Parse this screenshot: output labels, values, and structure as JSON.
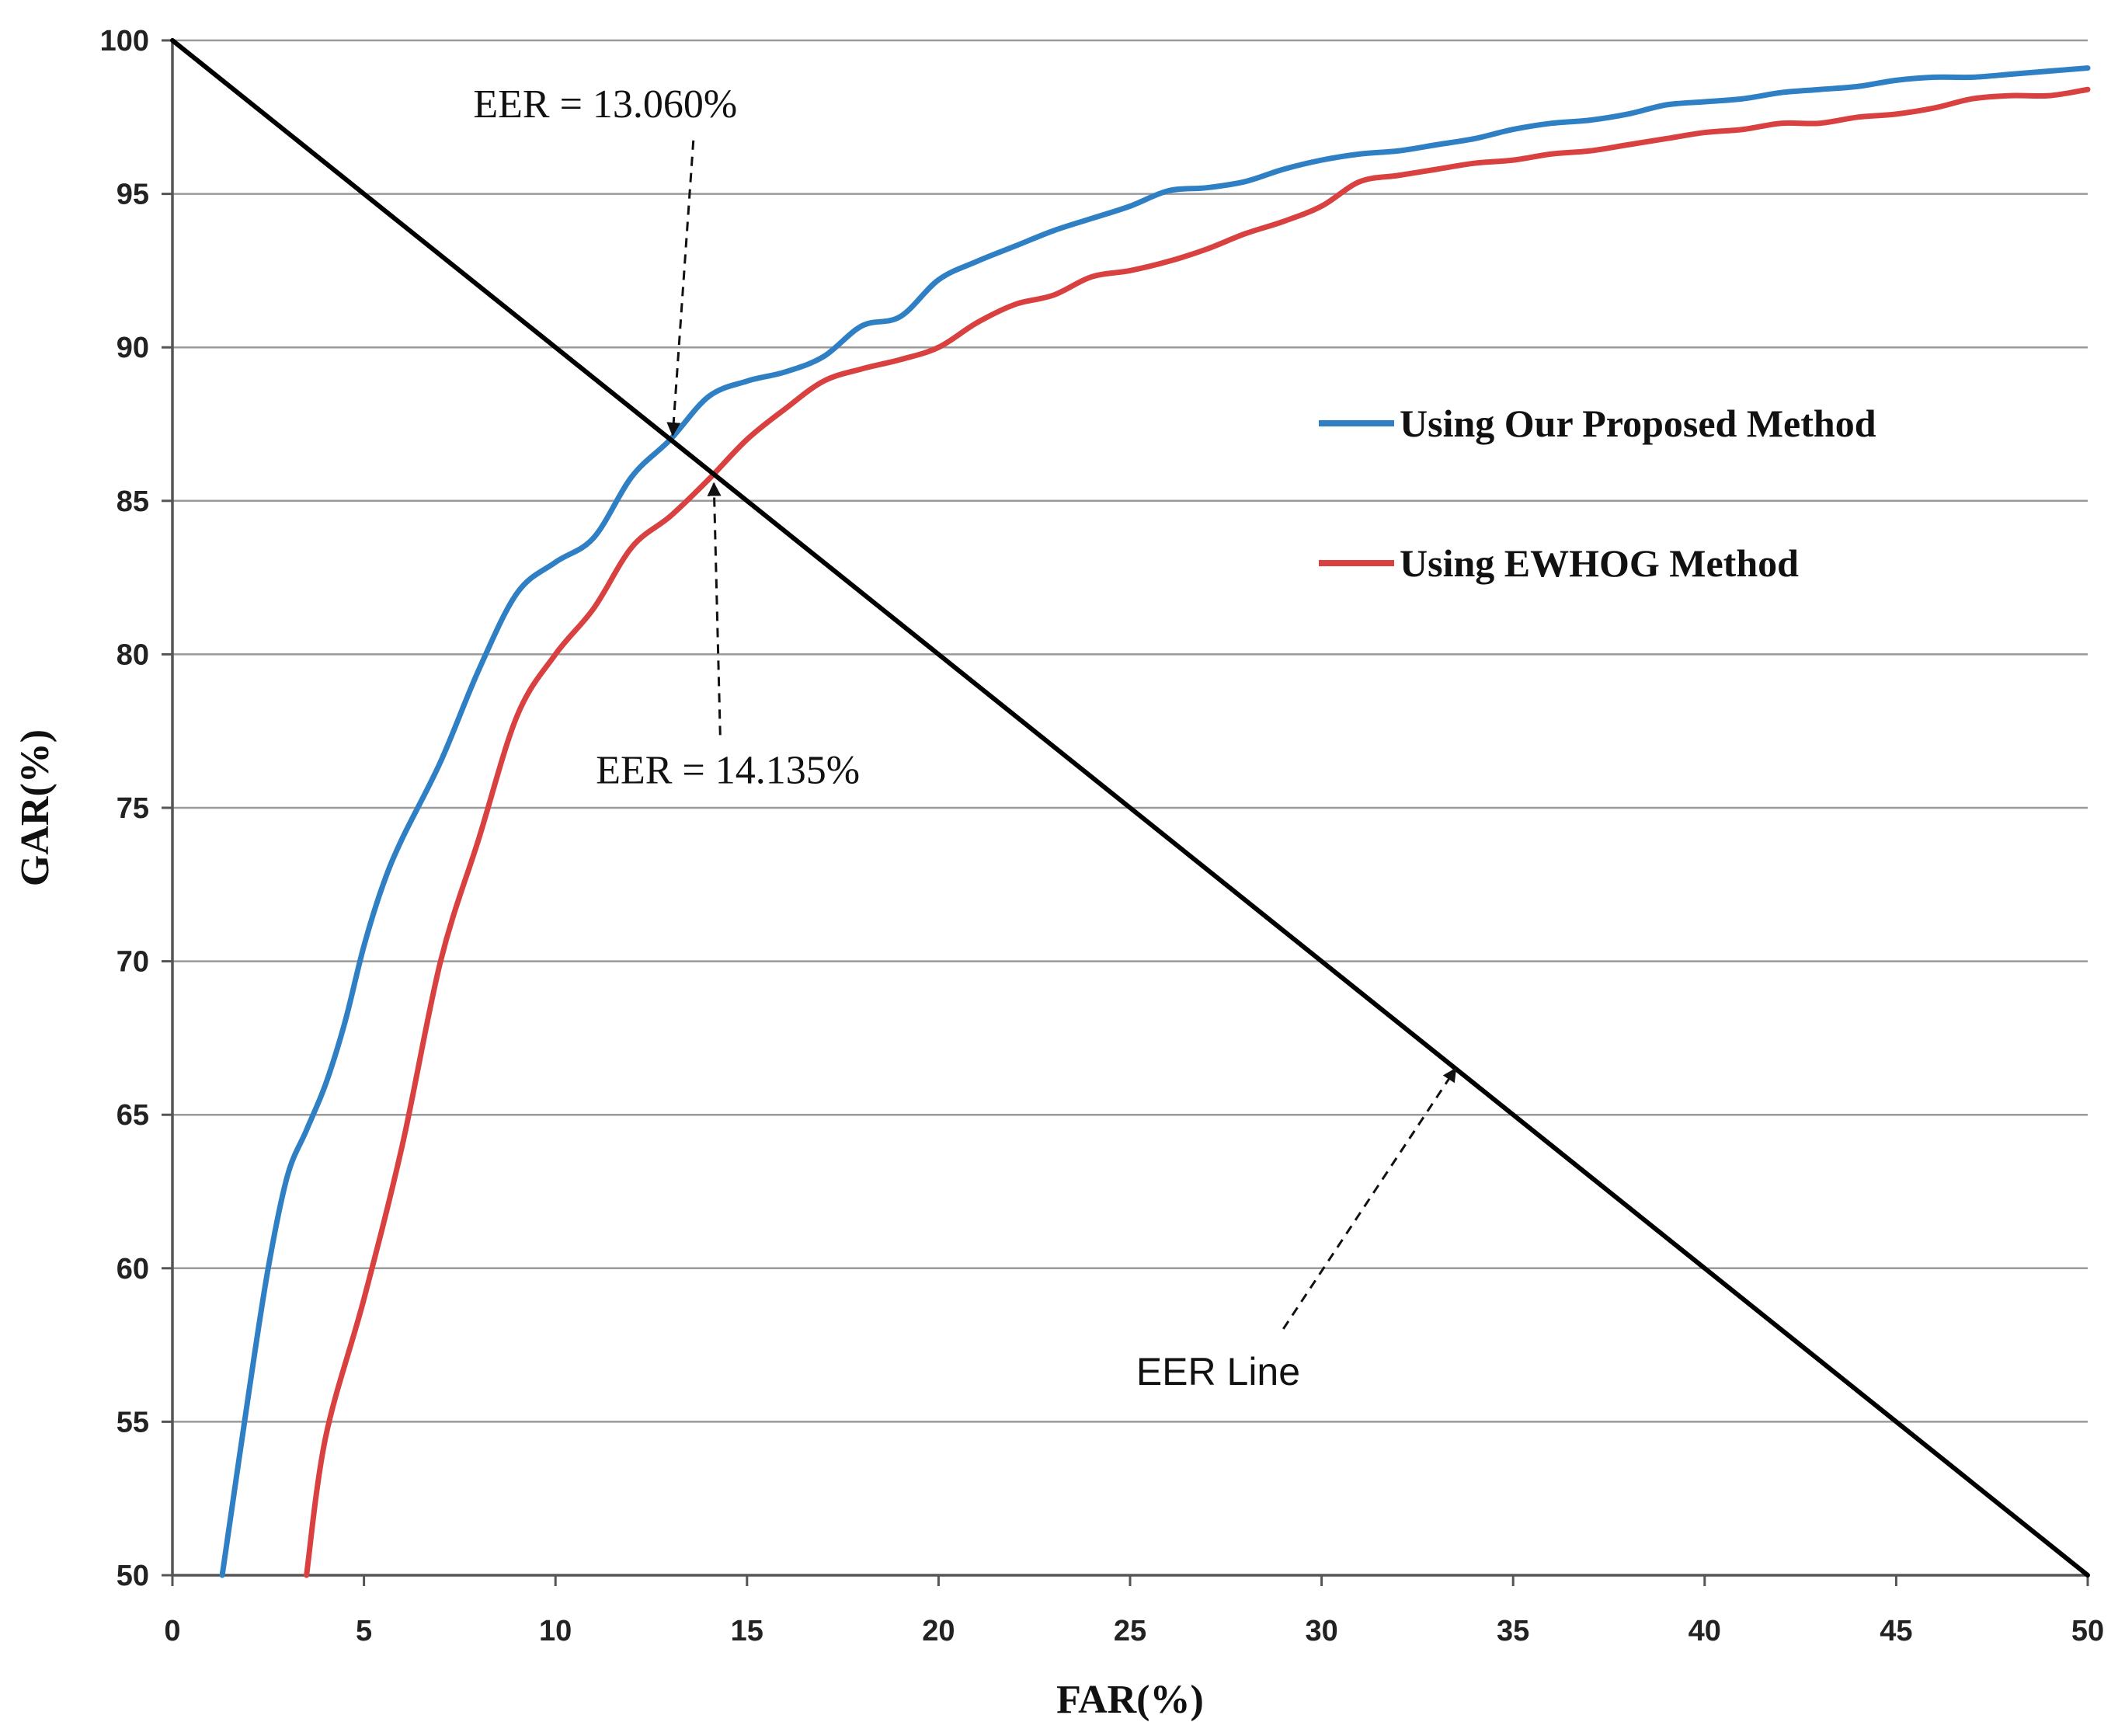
{
  "chart_data": {
    "type": "line",
    "title": "",
    "xlabel": "FAR(%)",
    "ylabel": "GAR(%)",
    "xlim": [
      0,
      50
    ],
    "ylim": [
      50,
      100
    ],
    "x_ticks": [
      "0",
      "5",
      "10",
      "15",
      "20",
      "25",
      "30",
      "35",
      "40",
      "45",
      "50"
    ],
    "y_ticks": [
      "50",
      "55",
      "60",
      "65",
      "70",
      "75",
      "80",
      "85",
      "90",
      "95",
      "100"
    ],
    "grid": "horizontal",
    "legend_position": "right",
    "series": [
      {
        "name": "Using Our Proposed Method",
        "color": "#2e7fc4",
        "points": [
          [
            1.3,
            50
          ],
          [
            2,
            56
          ],
          [
            2.5,
            60
          ],
          [
            3,
            63
          ],
          [
            3.5,
            64.5
          ],
          [
            4,
            66
          ],
          [
            4.5,
            68
          ],
          [
            5,
            70.5
          ],
          [
            5.5,
            72.5
          ],
          [
            6,
            74
          ],
          [
            7,
            76.5
          ],
          [
            8,
            79.5
          ],
          [
            9,
            82
          ],
          [
            10,
            83
          ],
          [
            11,
            83.8
          ],
          [
            12,
            85.8
          ],
          [
            13,
            87
          ],
          [
            14,
            88.4
          ],
          [
            15,
            88.9
          ],
          [
            16,
            89.2
          ],
          [
            17,
            89.7
          ],
          [
            18,
            90.7
          ],
          [
            19,
            91
          ],
          [
            20,
            92.2
          ],
          [
            21,
            92.8
          ],
          [
            22,
            93.3
          ],
          [
            23,
            93.8
          ],
          [
            24,
            94.2
          ],
          [
            25,
            94.6
          ],
          [
            26,
            95.1
          ],
          [
            27,
            95.2
          ],
          [
            28,
            95.4
          ],
          [
            29,
            95.8
          ],
          [
            30,
            96.1
          ],
          [
            31,
            96.3
          ],
          [
            32,
            96.4
          ],
          [
            33,
            96.6
          ],
          [
            34,
            96.8
          ],
          [
            35,
            97.1
          ],
          [
            36,
            97.3
          ],
          [
            37,
            97.4
          ],
          [
            38,
            97.6
          ],
          [
            39,
            97.9
          ],
          [
            40,
            98
          ],
          [
            41,
            98.1
          ],
          [
            42,
            98.3
          ],
          [
            43,
            98.4
          ],
          [
            44,
            98.5
          ],
          [
            45,
            98.7
          ],
          [
            46,
            98.8
          ],
          [
            47,
            98.8
          ],
          [
            48,
            98.9
          ],
          [
            49,
            99
          ],
          [
            50,
            99.1
          ]
        ]
      },
      {
        "name": "Using EWHOG Method",
        "color": "#d94040",
        "points": [
          [
            3.5,
            50
          ],
          [
            4,
            54.5
          ],
          [
            5,
            59
          ],
          [
            6,
            64
          ],
          [
            7,
            70
          ],
          [
            8,
            74
          ],
          [
            9,
            78
          ],
          [
            10,
            80
          ],
          [
            11,
            81.5
          ],
          [
            12,
            83.5
          ],
          [
            13,
            84.5
          ],
          [
            14,
            85.7
          ],
          [
            15,
            87
          ],
          [
            16,
            88
          ],
          [
            17,
            88.9
          ],
          [
            18,
            89.3
          ],
          [
            19,
            89.6
          ],
          [
            20,
            90
          ],
          [
            21,
            90.8
          ],
          [
            22,
            91.4
          ],
          [
            23,
            91.7
          ],
          [
            24,
            92.3
          ],
          [
            25,
            92.5
          ],
          [
            26,
            92.8
          ],
          [
            27,
            93.2
          ],
          [
            28,
            93.7
          ],
          [
            29,
            94.1
          ],
          [
            30,
            94.6
          ],
          [
            31,
            95.4
          ],
          [
            32,
            95.6
          ],
          [
            33,
            95.8
          ],
          [
            34,
            96
          ],
          [
            35,
            96.1
          ],
          [
            36,
            96.3
          ],
          [
            37,
            96.4
          ],
          [
            38,
            96.6
          ],
          [
            39,
            96.8
          ],
          [
            40,
            97
          ],
          [
            41,
            97.1
          ],
          [
            42,
            97.3
          ],
          [
            43,
            97.3
          ],
          [
            44,
            97.5
          ],
          [
            45,
            97.6
          ],
          [
            46,
            97.8
          ],
          [
            47,
            98.1
          ],
          [
            48,
            98.2
          ],
          [
            49,
            98.2
          ],
          [
            50,
            98.4
          ]
        ]
      },
      {
        "name": "EER Line",
        "color": "#000000",
        "points": [
          [
            0,
            100
          ],
          [
            50,
            50
          ]
        ]
      }
    ],
    "annotations": [
      {
        "text": "EER = 13.060%",
        "x": 11.3,
        "y": 97.5,
        "target_x": 13.06,
        "target_y": 86.94
      },
      {
        "text": "EER = 14.135%",
        "x": 14.5,
        "y": 75.8,
        "target_x": 14.135,
        "target_y": 85.87
      },
      {
        "text": "EER Line",
        "x": 27.3,
        "y": 56.2,
        "target_x": 33.5,
        "target_y": 66.5
      }
    ]
  }
}
